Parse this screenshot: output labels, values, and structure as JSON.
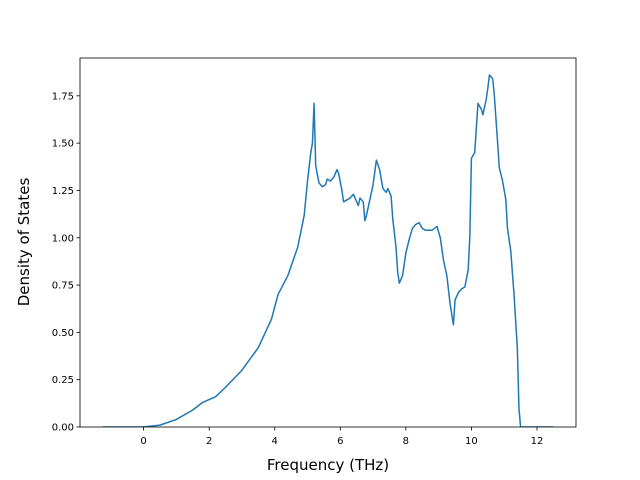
{
  "chart_data": {
    "type": "line",
    "x_label": "Frequency (THz)",
    "y_label": "Density of States",
    "x": [
      -1.25,
      0,
      0.5,
      1.0,
      1.5,
      1.8,
      2.2,
      2.5,
      3.0,
      3.5,
      3.9,
      4.1,
      4.4,
      4.7,
      4.9,
      5.0,
      5.1,
      5.15,
      5.2,
      5.25,
      5.35,
      5.45,
      5.55,
      5.6,
      5.7,
      5.8,
      5.9,
      5.95,
      6.05,
      6.1,
      6.2,
      6.3,
      6.4,
      6.55,
      6.6,
      6.7,
      6.75,
      6.8,
      6.9,
      7.0,
      7.1,
      7.2,
      7.3,
      7.4,
      7.45,
      7.55,
      7.6,
      7.7,
      7.75,
      7.8,
      7.9,
      8.0,
      8.1,
      8.2,
      8.3,
      8.4,
      8.5,
      8.6,
      8.8,
      8.95,
      9.05,
      9.15,
      9.25,
      9.35,
      9.45,
      9.5,
      9.6,
      9.7,
      9.8,
      9.9,
      9.95,
      10.0,
      10.1,
      10.2,
      10.3,
      10.35,
      10.45,
      10.5,
      10.55,
      10.65,
      10.7,
      10.8,
      10.85,
      10.95,
      11.05,
      11.1,
      11.2,
      11.3,
      11.4,
      11.45,
      11.5,
      12.5
    ],
    "series": [
      {
        "color": "#1f77b4",
        "values": [
          0,
          0,
          0.01,
          0.04,
          0.09,
          0.13,
          0.16,
          0.21,
          0.3,
          0.42,
          0.57,
          0.7,
          0.8,
          0.95,
          1.12,
          1.3,
          1.45,
          1.5,
          1.71,
          1.38,
          1.29,
          1.27,
          1.28,
          1.31,
          1.3,
          1.32,
          1.36,
          1.34,
          1.25,
          1.19,
          1.2,
          1.21,
          1.23,
          1.17,
          1.21,
          1.19,
          1.09,
          1.12,
          1.2,
          1.28,
          1.41,
          1.36,
          1.26,
          1.24,
          1.26,
          1.22,
          1.1,
          0.95,
          0.82,
          0.76,
          0.8,
          0.92,
          0.99,
          1.05,
          1.07,
          1.08,
          1.05,
          1.04,
          1.04,
          1.06,
          1.0,
          0.88,
          0.8,
          0.65,
          0.54,
          0.67,
          0.71,
          0.73,
          0.74,
          0.83,
          1.0,
          1.42,
          1.45,
          1.71,
          1.68,
          1.65,
          1.73,
          1.79,
          1.86,
          1.84,
          1.75,
          1.5,
          1.37,
          1.3,
          1.2,
          1.05,
          0.93,
          0.7,
          0.42,
          0.1,
          0,
          0
        ]
      }
    ],
    "xlim": [
      -1.94,
      13.19
    ],
    "ylim": [
      0,
      1.95
    ],
    "xticks": [
      0,
      2,
      4,
      6,
      8,
      10,
      12
    ],
    "yticks": [
      {
        "value": 0,
        "label": "0.00"
      },
      {
        "value": 0.25,
        "label": "0.25"
      },
      {
        "value": 0.5,
        "label": "0.50"
      },
      {
        "value": 0.75,
        "label": "0.75"
      },
      {
        "value": 1.0,
        "label": "1.00"
      },
      {
        "value": 1.25,
        "label": "1.25"
      },
      {
        "value": 1.5,
        "label": "1.50"
      },
      {
        "value": 1.75,
        "label": "1.75"
      }
    ],
    "grid": false
  }
}
